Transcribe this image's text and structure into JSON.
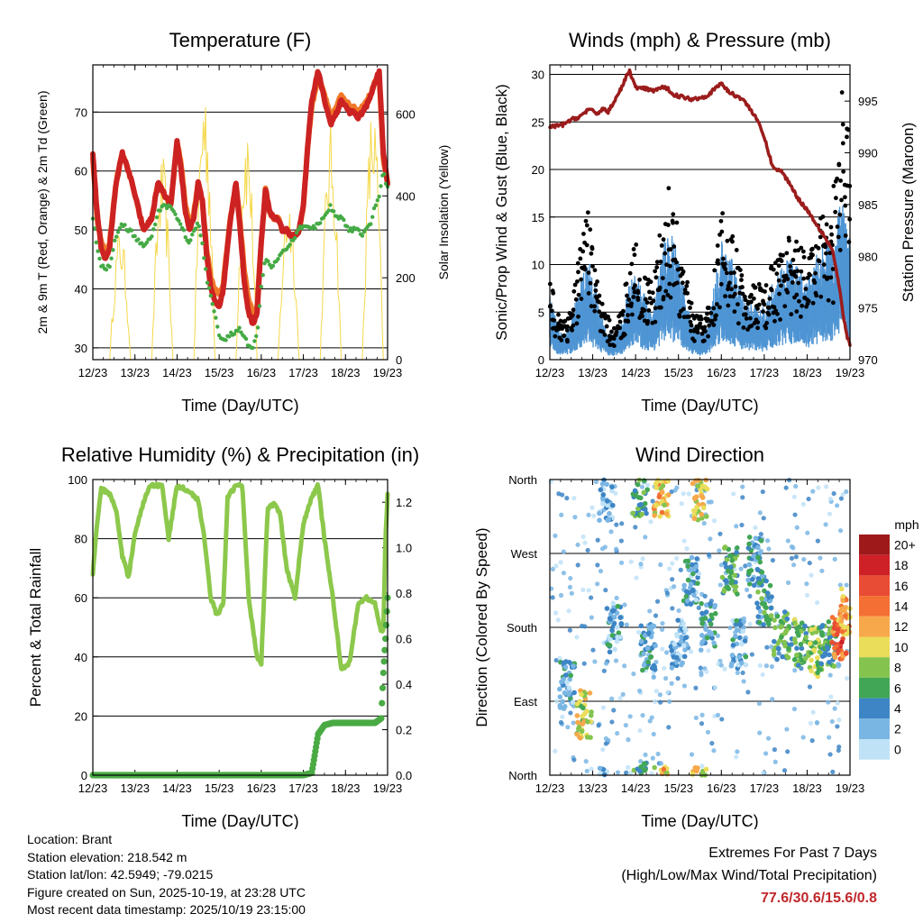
{
  "chart_data": [
    {
      "type": "line",
      "title": "Temperature (F)",
      "xlabel": "Time (Day/UTC)",
      "ylabel": "2m & 9m T (Red, Orange) & 2m Td (Green)",
      "y2label": "Solar Insolation (Yellow)",
      "xticks": [
        "12/23",
        "13/23",
        "14/23",
        "15/23",
        "16/23",
        "17/23",
        "18/23",
        "19/23"
      ],
      "yticks": [
        30,
        40,
        50,
        60,
        70
      ],
      "ylim": [
        28,
        78
      ],
      "y2ticks": [
        0,
        200,
        400,
        600
      ],
      "y2lim": [
        0,
        720
      ],
      "x": [
        0,
        0.1,
        0.2,
        0.3,
        0.4,
        0.55,
        0.7,
        0.85,
        1.0,
        1.2,
        1.4,
        1.55,
        1.7,
        1.85,
        2.0,
        2.1,
        2.2,
        2.3,
        2.4,
        2.5,
        2.6,
        2.7,
        2.8,
        2.9,
        3.0,
        3.1,
        3.25,
        3.4,
        3.5,
        3.6,
        3.7,
        3.8,
        3.9,
        4.0,
        4.1,
        4.2,
        4.3,
        4.4,
        4.5,
        4.6,
        4.7,
        4.8,
        4.9,
        5.0,
        5.1,
        5.2,
        5.35,
        5.5,
        5.65,
        5.8,
        5.9,
        6.0,
        6.1,
        6.2,
        6.3,
        6.4,
        6.5,
        6.6,
        6.7,
        6.8,
        6.9,
        7.0
      ],
      "series": [
        {
          "name": "2m T",
          "color": "#cc2222",
          "values": [
            63,
            53,
            47,
            45,
            47,
            58,
            63,
            60,
            56,
            50,
            52,
            58,
            56,
            54,
            65,
            60,
            53,
            50,
            52,
            58,
            55,
            46,
            40,
            38,
            37,
            40,
            51,
            58,
            50,
            41,
            36,
            34,
            36,
            48,
            57,
            53,
            52,
            52,
            50,
            50,
            49,
            49,
            50,
            54,
            64,
            72,
            77,
            72,
            68,
            70,
            72,
            71,
            70,
            70,
            69,
            70,
            71,
            73,
            75,
            77,
            63,
            58
          ]
        },
        {
          "name": "9m T",
          "color": "#f07828",
          "values": [
            62,
            52,
            48,
            46,
            48,
            58,
            63,
            60,
            56,
            50,
            52,
            58,
            56,
            54,
            65,
            61,
            54,
            51,
            53,
            58,
            55,
            47,
            42,
            40,
            39,
            41,
            51,
            58,
            51,
            43,
            38,
            36,
            37,
            48,
            57,
            53,
            52,
            52,
            50,
            50,
            49,
            49,
            50,
            54,
            64,
            71,
            76,
            73,
            69,
            71,
            73,
            72,
            71,
            71,
            70,
            71,
            72,
            73,
            75,
            76,
            62,
            58
          ]
        },
        {
          "name": "2m Td",
          "color": "#44aa44",
          "values": [
            52,
            47,
            44,
            43,
            44,
            49,
            51,
            50,
            49,
            47,
            49,
            53,
            54,
            54,
            52,
            51,
            49,
            48,
            50,
            51,
            48,
            42,
            39,
            36,
            32,
            31,
            32,
            33,
            33,
            32,
            30,
            30,
            32,
            40,
            45,
            44,
            44,
            45,
            46,
            47,
            48,
            49,
            50,
            51,
            51,
            50,
            51,
            52,
            54,
            52,
            52,
            51,
            50,
            50,
            50,
            49,
            50,
            51,
            54,
            56,
            60,
            57
          ]
        }
      ],
      "insolation_color": "#f5d84a",
      "insolation_peaks": [
        {
          "day": 0.65,
          "value": 330
        },
        {
          "day": 1.65,
          "value": 500
        },
        {
          "day": 2.65,
          "value": 700
        },
        {
          "day": 3.65,
          "value": 600
        },
        {
          "day": 4.65,
          "value": 420
        },
        {
          "day": 5.65,
          "value": 580
        },
        {
          "day": 6.65,
          "value": 640
        }
      ]
    },
    {
      "type": "line",
      "title": "Winds (mph) & Pressure (mb)",
      "xlabel": "Time (Day/UTC)",
      "ylabel": "Sonic/Prop Wind & Gust (Blue, Black)",
      "y2label": "Station Pressure (Maroon)",
      "xticks": [
        "12/23",
        "13/23",
        "14/23",
        "15/23",
        "16/23",
        "17/23",
        "18/23",
        "19/23"
      ],
      "yticks": [
        0,
        5,
        10,
        15,
        20,
        25,
        30
      ],
      "ylim": [
        0,
        31
      ],
      "y2ticks": [
        970,
        975,
        980,
        985,
        990,
        995
      ],
      "y2lim": [
        970,
        998.5
      ],
      "x": [
        0,
        0.15,
        0.3,
        0.5,
        0.7,
        0.9,
        1.1,
        1.25,
        1.35,
        1.5,
        1.7,
        1.85,
        2.0,
        2.2,
        2.4,
        2.6,
        2.75,
        2.9,
        3.1,
        3.3,
        3.5,
        3.7,
        3.9,
        4.0,
        4.2,
        4.5,
        4.8,
        5.0,
        5.2,
        5.4,
        5.6,
        5.8,
        6.0,
        6.2,
        6.4,
        6.6,
        6.75,
        6.85,
        6.95,
        7.0
      ],
      "series": [
        {
          "name": "Wind",
          "color": "#4f95d4",
          "values": [
            5,
            3,
            2,
            3,
            6,
            8,
            5,
            3,
            2,
            2,
            3,
            6,
            7,
            5,
            4,
            8,
            10,
            9,
            6,
            3,
            2,
            3,
            7,
            9,
            8,
            5,
            4,
            4,
            6,
            7,
            8,
            7,
            6,
            8,
            9,
            9,
            13,
            12,
            10,
            9
          ]
        },
        {
          "name": "Gust",
          "color": "#000000",
          "values": [
            9,
            5,
            4,
            5,
            10,
            14,
            8,
            5,
            4,
            3,
            5,
            10,
            12,
            8,
            7,
            13,
            16,
            14,
            9,
            5,
            4,
            5,
            11,
            14,
            12,
            8,
            7,
            7,
            9,
            10,
            12,
            11,
            10,
            12,
            14,
            14,
            22,
            26,
            24,
            18
          ]
        },
        {
          "name": "Pressure",
          "color": "#9b1c1c",
          "values": [
            992.5,
            992.6,
            992.7,
            993.2,
            993.5,
            994.2,
            993.8,
            994.3,
            993.9,
            995.0,
            996.5,
            998.0,
            996.3,
            996.2,
            996.0,
            996.3,
            996.2,
            995.6,
            995.4,
            995.2,
            995.3,
            995.6,
            996.4,
            996.7,
            995.8,
            995.2,
            993.5,
            991.5,
            988.6,
            988.2,
            987.0,
            985.5,
            984.5,
            983.2,
            982.0,
            980.5,
            977.0,
            974.0,
            972.0,
            971.5
          ]
        }
      ]
    },
    {
      "type": "line",
      "title": "Relative Humidity (%) & Precipitation (in)",
      "xlabel": "Time (Day/UTC)",
      "ylabel": "Percent & Total Rainfall",
      "xticks": [
        "12/23",
        "13/23",
        "14/23",
        "15/23",
        "16/23",
        "17/23",
        "18/23",
        "19/23"
      ],
      "yticks": [
        0,
        20,
        40,
        60,
        80,
        100
      ],
      "ylim": [
        0,
        100
      ],
      "y2ticks": [
        "0.0",
        "0.2",
        "0.4",
        "0.6",
        "0.8",
        "1.0",
        "1.2"
      ],
      "y2lim": [
        0,
        1.3
      ],
      "x": [
        0,
        0.1,
        0.2,
        0.3,
        0.4,
        0.55,
        0.7,
        0.85,
        1.0,
        1.2,
        1.35,
        1.5,
        1.65,
        1.8,
        2.0,
        2.15,
        2.3,
        2.5,
        2.65,
        2.8,
        2.95,
        3.1,
        3.2,
        3.4,
        3.55,
        3.7,
        3.9,
        4.0,
        4.15,
        4.3,
        4.45,
        4.6,
        4.8,
        5.0,
        5.2,
        5.35,
        5.5,
        5.7,
        5.9,
        6.1,
        6.3,
        6.5,
        6.7,
        6.85,
        6.9,
        6.95,
        7.0
      ],
      "series": [
        {
          "name": "RH",
          "color": "#8cc84b",
          "values": [
            68,
            85,
            97,
            96,
            95,
            90,
            74,
            67,
            82,
            92,
            98,
            98,
            98,
            80,
            98,
            97,
            96,
            93,
            80,
            60,
            54,
            58,
            94,
            98,
            98,
            60,
            40,
            38,
            90,
            92,
            88,
            70,
            60,
            85,
            94,
            98,
            80,
            60,
            36,
            38,
            58,
            60,
            58,
            48,
            50,
            80,
            95
          ]
        },
        {
          "name": "Rain",
          "color": "#4aaa44",
          "values": [
            0,
            0,
            0,
            0,
            0,
            0,
            0,
            0,
            0,
            0,
            0,
            0,
            0,
            0,
            0,
            0,
            0,
            0,
            0,
            0,
            0,
            0,
            0,
            0,
            0,
            0,
            0,
            0,
            0,
            0,
            0,
            0,
            0,
            0,
            0.01,
            0.18,
            0.22,
            0.23,
            0.23,
            0.23,
            0.23,
            0.23,
            0.23,
            0.25,
            0.45,
            0.6,
            0.78
          ]
        }
      ]
    },
    {
      "type": "scatter",
      "title": "Wind Direction",
      "xlabel": "Time (Day/UTC)",
      "ylabel": "Direction (Colored By Speed)",
      "xticks": [
        "12/23",
        "13/23",
        "14/23",
        "15/23",
        "16/23",
        "17/23",
        "18/23",
        "19/23"
      ],
      "ycategories": [
        "North",
        "East",
        "South",
        "West",
        "North"
      ],
      "ylim": [
        0,
        360
      ],
      "clusters": [
        {
          "day": 0.4,
          "dir": 110,
          "speed": 3
        },
        {
          "day": 0.8,
          "dir": 75,
          "speed": 9
        },
        {
          "day": 1.3,
          "dir": 340,
          "speed": 2
        },
        {
          "day": 1.5,
          "dir": 180,
          "speed": 3
        },
        {
          "day": 2.1,
          "dir": 345,
          "speed": 6
        },
        {
          "day": 2.6,
          "dir": 340,
          "speed": 11
        },
        {
          "day": 2.3,
          "dir": 155,
          "speed": 4
        },
        {
          "day": 3.0,
          "dir": 160,
          "speed": 2
        },
        {
          "day": 3.3,
          "dir": 235,
          "speed": 3
        },
        {
          "day": 3.5,
          "dir": 340,
          "speed": 10
        },
        {
          "day": 3.7,
          "dir": 180,
          "speed": 4
        },
        {
          "day": 4.2,
          "dir": 250,
          "speed": 6
        },
        {
          "day": 4.4,
          "dir": 160,
          "speed": 3
        },
        {
          "day": 4.8,
          "dir": 260,
          "speed": 4
        },
        {
          "day": 5.0,
          "dir": 210,
          "speed": 5
        },
        {
          "day": 5.4,
          "dir": 170,
          "speed": 6
        },
        {
          "day": 5.8,
          "dir": 160,
          "speed": 7
        },
        {
          "day": 6.2,
          "dir": 150,
          "speed": 8
        },
        {
          "day": 6.5,
          "dir": 160,
          "speed": 6
        },
        {
          "day": 6.75,
          "dir": 170,
          "speed": 15
        },
        {
          "day": 6.9,
          "dir": 200,
          "speed": 12
        }
      ],
      "colorbar": {
        "label": "mph",
        "levels": [
          "20+",
          "18",
          "16",
          "14",
          "12",
          "10",
          "8",
          "6",
          "4",
          "2",
          "0"
        ],
        "colors": [
          "#9e1a1a",
          "#cd2027",
          "#e84c34",
          "#f36f33",
          "#f7a84a",
          "#eadd5a",
          "#84c44e",
          "#41a656",
          "#3d85c5",
          "#7ab6e4",
          "#bfe2f7"
        ]
      }
    }
  ],
  "info": {
    "location": "Location: Brant",
    "elevation": "Station elevation: 218.542 m",
    "latlon": "Station lat/lon: 42.5949; -79.0215",
    "created": "Figure created on Sun, 2025-10-19, at 23:28 UTC",
    "recent": "Most recent data timestamp: 2025/10/19 23:15:00"
  },
  "extremes": {
    "title": "Extremes For Past 7 Days",
    "subtitle": "(High/Low/Max Wind/Total Precipitation)",
    "values": "77.6/30.6/15.6/0.8"
  }
}
